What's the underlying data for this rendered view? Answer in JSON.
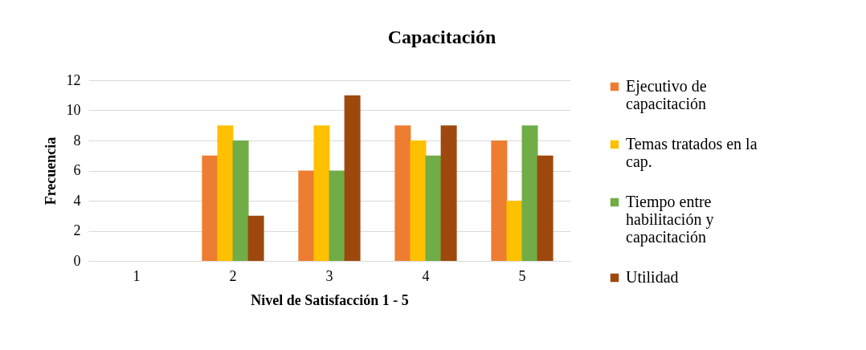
{
  "chart_data": {
    "type": "bar",
    "title": "Capacitación",
    "xlabel": "Nivel de Satisfacción 1 - 5",
    "ylabel": "Frecuencia",
    "categories": [
      "1",
      "2",
      "3",
      "4",
      "5"
    ],
    "series": [
      {
        "name": "Ejecutivo de capacitación",
        "color": "#ed7d31",
        "values": [
          0,
          7,
          6,
          9,
          8
        ]
      },
      {
        "name": "Temas tratados en la cap.",
        "color": "#ffc000",
        "values": [
          0,
          9,
          9,
          8,
          4
        ]
      },
      {
        "name": "Tiempo entre habilitación y capacitación",
        "color": "#70ad47",
        "values": [
          0,
          8,
          6,
          7,
          9
        ]
      },
      {
        "name": "Utilidad",
        "color": "#9e480e",
        "values": [
          0,
          3,
          11,
          9,
          7
        ]
      }
    ],
    "ylim": [
      0,
      12
    ],
    "yticks": [
      0,
      2,
      4,
      6,
      8,
      10,
      12
    ],
    "grid": "y",
    "legend": "right"
  }
}
